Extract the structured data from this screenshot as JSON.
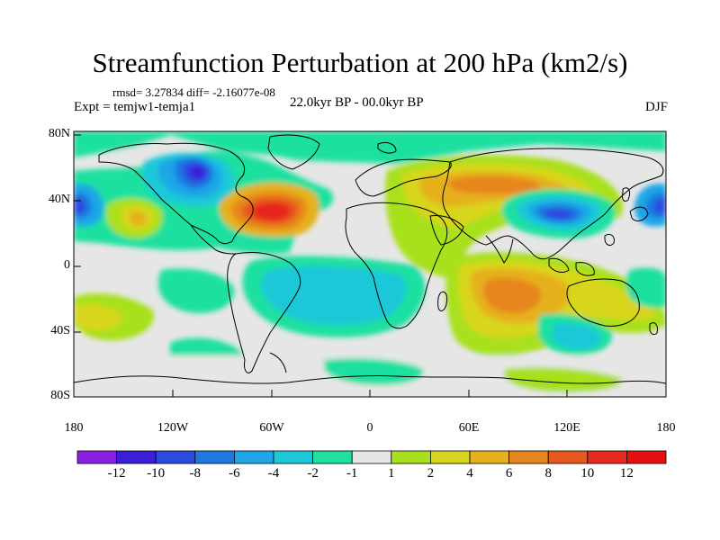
{
  "title": "Streamfunction Perturbation at 200 hPa (km2/s)",
  "stats": "rmsd= 3.27834 diff= -2.16077e-08",
  "expt": "Expt = temjw1-temja1",
  "period": "22.0kyr BP - 00.0kyr BP",
  "season": "DJF",
  "lat_labels": [
    "80N",
    "40N",
    "0",
    "40S",
    "80S"
  ],
  "lon_labels": [
    "180",
    "120W",
    "60W",
    "0",
    "60E",
    "120E",
    "180"
  ],
  "colorbar": {
    "labels": [
      "-12",
      "-10",
      "-8",
      "-6",
      "-4",
      "-2",
      "-1",
      "1",
      "2",
      "4",
      "6",
      "8",
      "10",
      "12"
    ],
    "colors": [
      "#8a1fe0",
      "#3a1ed8",
      "#2a4ae0",
      "#1f78e0",
      "#1ea6e6",
      "#1ec8d8",
      "#1ee0a0",
      "#e6e6e6",
      "#a8e01e",
      "#d8d61e",
      "#e6b01e",
      "#e6861e",
      "#e6581e",
      "#e6281e",
      "#e60e0e"
    ]
  },
  "map_fields": [
    {
      "lon": -88,
      "lat": 55,
      "value": -11,
      "label": "N America low"
    },
    {
      "lon": -62,
      "lat": 35,
      "value": 11,
      "label": "W Atlantic high"
    },
    {
      "lon": -178,
      "lat": 35,
      "value": -8,
      "label": "dateline low W"
    },
    {
      "lon": 178,
      "lat": 35,
      "value": -8,
      "label": "dateline low E"
    },
    {
      "lon": 108,
      "lat": 35,
      "value": -9,
      "label": "East Asia low"
    },
    {
      "lon": -145,
      "lat": 30,
      "value": 5,
      "label": "N Pacific high"
    },
    {
      "lon": 65,
      "lat": 50,
      "value": 5,
      "label": "Eurasia high"
    },
    {
      "lon": 85,
      "lat": -20,
      "value": 7,
      "label": "Indian Ocean high"
    },
    {
      "lon": -20,
      "lat": -20,
      "value": -4,
      "label": "S Atlantic low"
    }
  ]
}
